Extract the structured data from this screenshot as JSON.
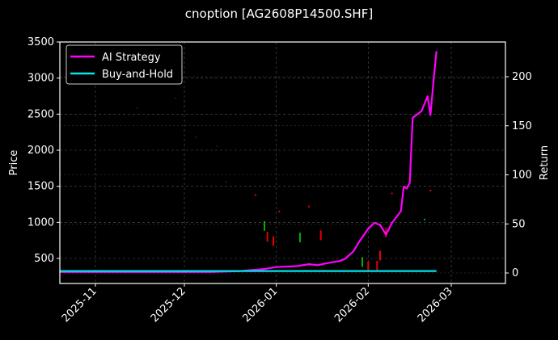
{
  "chart_data": {
    "type": "line",
    "title": "cnoption [AG2608P14500.SHF]",
    "xlabel": "",
    "ylabel": "Price",
    "ylabel_right": "Return",
    "ylim": [
      150,
      3500
    ],
    "ylim_right": [
      -10,
      232
    ],
    "yticks": [
      500,
      1000,
      1500,
      2000,
      2500,
      3000,
      3500
    ],
    "yticks_right": [
      0,
      50,
      100,
      150,
      200
    ],
    "xticks": [
      "2025-11",
      "2025-12",
      "2026-01",
      "2026-02",
      "2026-03"
    ],
    "grid": true,
    "legend_position": "upper left",
    "legend": [
      {
        "name": "AI Strategy",
        "color": "#ff00ff"
      },
      {
        "name": "Buy-and-Hold",
        "color": "#00e5ee"
      }
    ],
    "series": [
      {
        "name": "AI Strategy",
        "axis": "right",
        "color": "#ff00ff",
        "points": [
          [
            "2025-10-20",
            1
          ],
          [
            "2025-11-15",
            1
          ],
          [
            "2025-12-10",
            1
          ],
          [
            "2025-12-20",
            2
          ],
          [
            "2025-12-28",
            4
          ],
          [
            "2026-01-01",
            6
          ],
          [
            "2026-01-08",
            7
          ],
          [
            "2026-01-12",
            9
          ],
          [
            "2026-01-15",
            8
          ],
          [
            "2026-01-18",
            10
          ],
          [
            "2026-01-22",
            12
          ],
          [
            "2026-01-24",
            14
          ],
          [
            "2026-01-27",
            22
          ],
          [
            "2026-01-29",
            32
          ],
          [
            "2026-02-01",
            45
          ],
          [
            "2026-02-03",
            51
          ],
          [
            "2026-02-05",
            49
          ],
          [
            "2026-02-07",
            39
          ],
          [
            "2026-02-09",
            51
          ],
          [
            "2026-02-12",
            63
          ],
          [
            "2026-02-13",
            88
          ],
          [
            "2026-02-14",
            86
          ],
          [
            "2026-02-15",
            92
          ],
          [
            "2026-02-16",
            158
          ],
          [
            "2026-02-19",
            165
          ],
          [
            "2026-02-21",
            180
          ],
          [
            "2026-02-22",
            161
          ],
          [
            "2026-02-23",
            195
          ],
          [
            "2026-02-24",
            226
          ]
        ]
      },
      {
        "name": "Buy-and-Hold",
        "axis": "right",
        "color": "#00e5ee",
        "points": [
          [
            "2025-10-20",
            2
          ],
          [
            "2026-02-24",
            2
          ]
        ]
      }
    ],
    "candles_note": "faint price candlesticks (red down / green up) scattered from ~2600 in Nov 2025 declining to ~400 in Feb 2026",
    "candles": [
      {
        "date": "2025-11-15",
        "price": 2580,
        "color": "#ff0000"
      },
      {
        "date": "2025-11-28",
        "price": 2720,
        "color": "#ff0000"
      },
      {
        "date": "2025-12-05",
        "price": 2180,
        "color": "#ff0000"
      },
      {
        "date": "2025-12-12",
        "price": 2060,
        "color": "#ff0000"
      },
      {
        "date": "2025-12-15",
        "price": 1560,
        "color": "#ff0000"
      },
      {
        "date": "2025-12-25",
        "price": 1380,
        "color": "#ff0000"
      },
      {
        "date": "2025-12-28",
        "price": 950,
        "color": "#00c000"
      },
      {
        "date": "2025-12-29",
        "price": 800,
        "color": "#ff0000"
      },
      {
        "date": "2025-12-31",
        "price": 740,
        "color": "#ff0000"
      },
      {
        "date": "2026-01-02",
        "price": 1150,
        "color": "#ff0000"
      },
      {
        "date": "2026-01-09",
        "price": 790,
        "color": "#00c000"
      },
      {
        "date": "2026-01-12",
        "price": 1220,
        "color": "#ff0000"
      },
      {
        "date": "2026-01-16",
        "price": 820,
        "color": "#ff0000"
      },
      {
        "date": "2026-01-30",
        "price": 450,
        "color": "#00c000"
      },
      {
        "date": "2026-02-01",
        "price": 390,
        "color": "#ff0000"
      },
      {
        "date": "2026-02-04",
        "price": 400,
        "color": "#ff0000"
      },
      {
        "date": "2026-02-05",
        "price": 540,
        "color": "#ff0000"
      },
      {
        "date": "2026-02-07",
        "price": 860,
        "color": "#ff0000"
      },
      {
        "date": "2026-02-09",
        "price": 1400,
        "color": "#ff0000"
      },
      {
        "date": "2026-02-20",
        "price": 1040,
        "color": "#00c000"
      },
      {
        "date": "2026-02-22",
        "price": 1440,
        "color": "#ff0000"
      }
    ]
  }
}
